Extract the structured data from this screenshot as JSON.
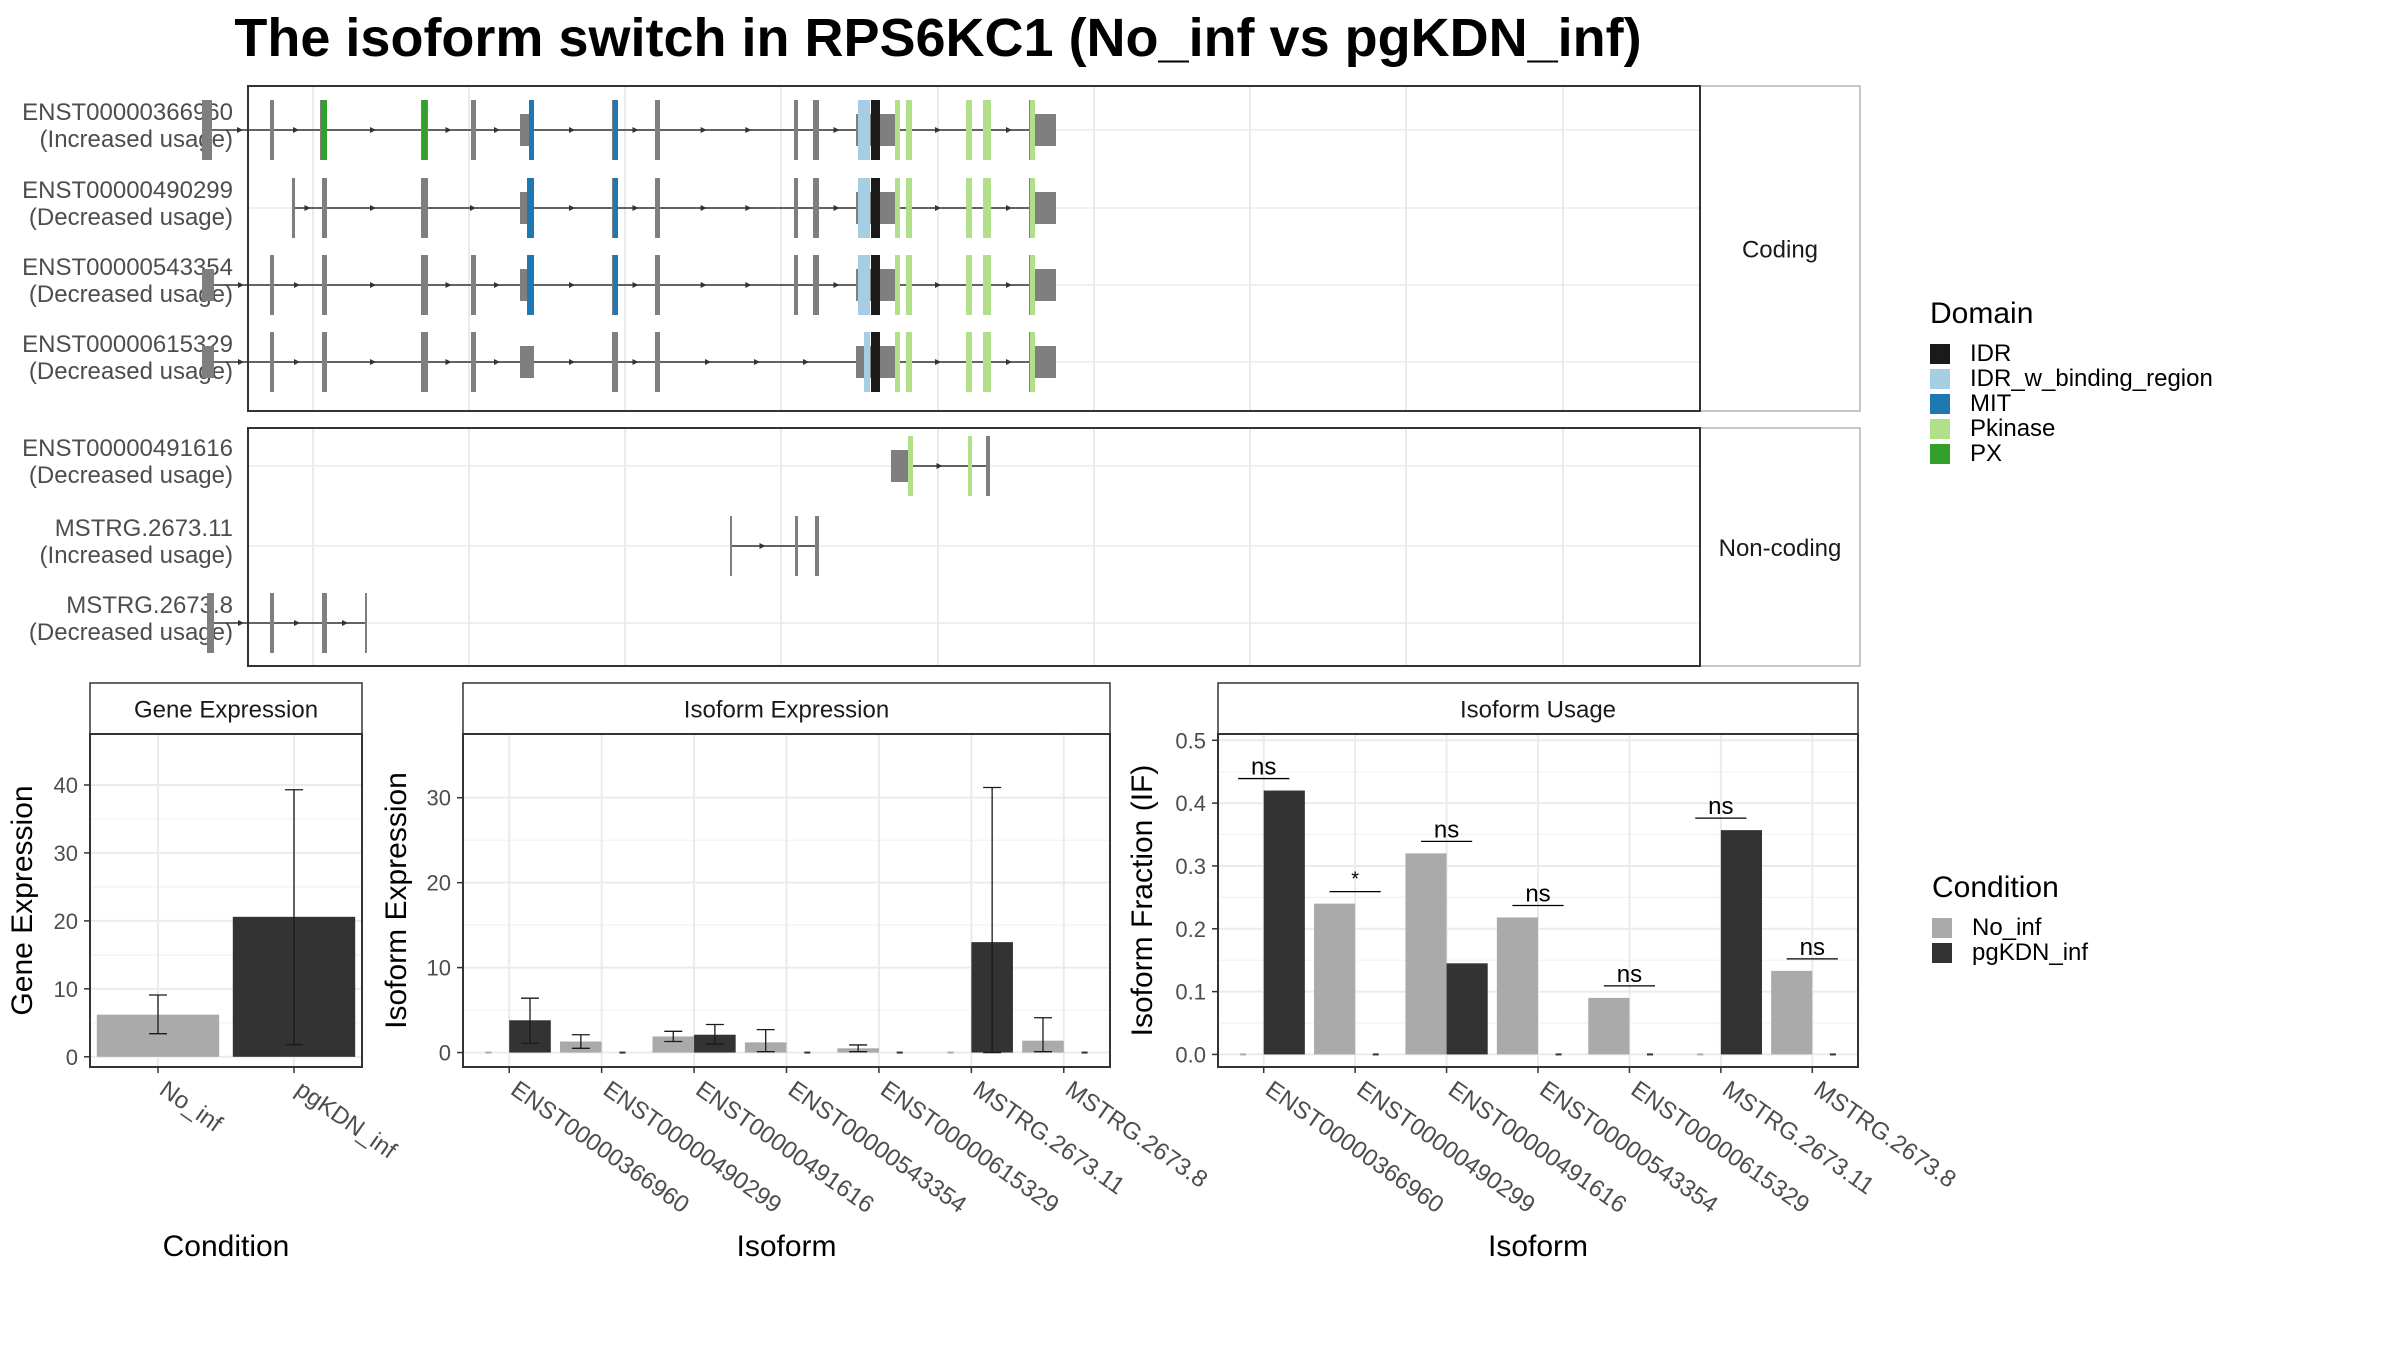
{
  "title": "The isoform switch in RPS6KC1 (No_inf vs pgKDN_inf)",
  "colors": {
    "no_inf": "#aaaaaa",
    "pgkdn_inf": "#333333",
    "exon": "#7f7f7f",
    "IDR": "#1a1a1a",
    "IDR_w_binding_region": "#a6cee3",
    "MIT": "#1f78b4",
    "Pkinase": "#b2df8a",
    "PX": "#33a02c"
  },
  "chart_data": [
    {
      "type": "gene-structure",
      "panels": [
        {
          "strip": "Coding",
          "transcripts": [
            {
              "id": "ENST00000366960",
              "usage": "(Increased usage)",
              "start": 202,
              "end": 1056,
              "exons": [
                [
                  202,
                  212
                ],
                [
                  270,
                  274
                ],
                [
                  320,
                  327
                ],
                [
                  421,
                  428
                ],
                [
                  471,
                  476
                ],
                [
                  520,
                  534
                ],
                [
                  612,
                  618
                ],
                [
                  655,
                  660
                ],
                [
                  794,
                  798
                ],
                [
                  813,
                  819
                ],
                [
                  856,
                  895
                ],
                [
                  895,
                  900
                ],
                [
                  906,
                  912
                ],
                [
                  966,
                  972
                ],
                [
                  983,
                  991
                ],
                [
                  1029,
                  1035
                ],
                [
                  1035,
                  1056
                ]
              ],
              "domains": [
                [
                  321,
                  327,
                  "PX"
                ],
                [
                  422,
                  427,
                  "PX"
                ],
                [
                  529,
                  534,
                  "MIT"
                ],
                [
                  613,
                  618,
                  "MIT"
                ],
                [
                  858,
                  870,
                  "IDR_w_binding_region"
                ],
                [
                  871,
                  880,
                  "IDR"
                ],
                [
                  895,
                  900,
                  "Pkinase"
                ],
                [
                  906,
                  912,
                  "Pkinase"
                ],
                [
                  966,
                  972,
                  "Pkinase"
                ],
                [
                  983,
                  991,
                  "Pkinase"
                ],
                [
                  1030,
                  1035,
                  "Pkinase"
                ]
              ]
            },
            {
              "id": "ENST00000490299",
              "usage": "(Decreased usage)",
              "start": 292,
              "end": 1056,
              "exons": [
                [
                  292,
                  295
                ],
                [
                  322,
                  327
                ],
                [
                  421,
                  428
                ],
                [
                  520,
                  534
                ],
                [
                  612,
                  618
                ],
                [
                  655,
                  660
                ],
                [
                  794,
                  798
                ],
                [
                  813,
                  819
                ],
                [
                  856,
                  895
                ],
                [
                  895,
                  900
                ],
                [
                  906,
                  912
                ],
                [
                  966,
                  972
                ],
                [
                  983,
                  991
                ],
                [
                  1029,
                  1035
                ],
                [
                  1035,
                  1056
                ]
              ],
              "domains": [
                [
                  527,
                  534,
                  "MIT"
                ],
                [
                  613,
                  618,
                  "MIT"
                ],
                [
                  858,
                  870,
                  "IDR_w_binding_region"
                ],
                [
                  871,
                  880,
                  "IDR"
                ],
                [
                  895,
                  900,
                  "Pkinase"
                ],
                [
                  906,
                  912,
                  "Pkinase"
                ],
                [
                  966,
                  972,
                  "Pkinase"
                ],
                [
                  983,
                  991,
                  "Pkinase"
                ],
                [
                  1030,
                  1035,
                  "Pkinase"
                ]
              ]
            },
            {
              "id": "ENST00000543354",
              "usage": "(Decreased usage)",
              "start": 202,
              "end": 1056,
              "exons": [
                [
                  202,
                  214
                ],
                [
                  270,
                  274
                ],
                [
                  322,
                  327
                ],
                [
                  421,
                  428
                ],
                [
                  471,
                  476
                ],
                [
                  520,
                  534
                ],
                [
                  612,
                  618
                ],
                [
                  655,
                  660
                ],
                [
                  794,
                  798
                ],
                [
                  813,
                  819
                ],
                [
                  856,
                  895
                ],
                [
                  895,
                  900
                ],
                [
                  906,
                  912
                ],
                [
                  966,
                  972
                ],
                [
                  983,
                  991
                ],
                [
                  1029,
                  1035
                ],
                [
                  1035,
                  1056
                ]
              ],
              "domains": [
                [
                  527,
                  534,
                  "MIT"
                ],
                [
                  613,
                  618,
                  "MIT"
                ],
                [
                  858,
                  870,
                  "IDR_w_binding_region"
                ],
                [
                  871,
                  880,
                  "IDR"
                ],
                [
                  895,
                  900,
                  "Pkinase"
                ],
                [
                  906,
                  912,
                  "Pkinase"
                ],
                [
                  966,
                  972,
                  "Pkinase"
                ],
                [
                  983,
                  991,
                  "Pkinase"
                ],
                [
                  1030,
                  1035,
                  "Pkinase"
                ]
              ]
            },
            {
              "id": "ENST00000615329",
              "usage": "(Decreased usage)",
              "start": 202,
              "end": 1056,
              "exons": [
                [
                  202,
                  214
                ],
                [
                  270,
                  274
                ],
                [
                  322,
                  327
                ],
                [
                  421,
                  428
                ],
                [
                  471,
                  476
                ],
                [
                  520,
                  534
                ],
                [
                  612,
                  618
                ],
                [
                  655,
                  660
                ],
                [
                  856,
                  895
                ],
                [
                  895,
                  900
                ],
                [
                  906,
                  912
                ],
                [
                  966,
                  972
                ],
                [
                  983,
                  991
                ],
                [
                  1029,
                  1035
                ],
                [
                  1035,
                  1056
                ]
              ],
              "domains": [
                [
                  864,
                  870,
                  "IDR_w_binding_region"
                ],
                [
                  871,
                  880,
                  "IDR"
                ],
                [
                  895,
                  900,
                  "Pkinase"
                ],
                [
                  906,
                  912,
                  "Pkinase"
                ],
                [
                  966,
                  972,
                  "Pkinase"
                ],
                [
                  983,
                  991,
                  "Pkinase"
                ],
                [
                  1030,
                  1035,
                  "Pkinase"
                ]
              ]
            }
          ]
        },
        {
          "strip": "Non-coding",
          "transcripts": [
            {
              "id": "ENST00000491616",
              "usage": "(Decreased usage)",
              "start": 891,
              "end": 990,
              "exons": [
                [
                  891,
                  908
                ],
                [
                  908,
                  913
                ],
                [
                  968,
                  972
                ],
                [
                  986,
                  990
                ]
              ],
              "domains": [
                [
                  908,
                  913,
                  "Pkinase"
                ],
                [
                  968,
                  972,
                  "Pkinase"
                ]
              ]
            },
            {
              "id": "MSTRG.2673.11",
              "usage": "(Increased usage)",
              "start": 730,
              "end": 819,
              "exons": [
                [
                  730,
                  732
                ],
                [
                  795,
                  798
                ],
                [
                  815,
                  819
                ]
              ],
              "domains": []
            },
            {
              "id": "MSTRG.2673.8",
              "usage": "(Decreased usage)",
              "start": 207,
              "end": 367,
              "exons": [
                [
                  207,
                  214
                ],
                [
                  270,
                  274
                ],
                [
                  322,
                  327
                ],
                [
                  365,
                  367
                ]
              ],
              "domains": []
            }
          ]
        }
      ]
    },
    {
      "type": "bar",
      "strip": "Gene Expression",
      "xlabel": "Condition",
      "ylabel": "Gene Expression",
      "categories": [
        "No_inf",
        "pgKDN_inf"
      ],
      "values": [
        6.2,
        20.6
      ],
      "errors": [
        [
          3.4,
          9.1
        ],
        [
          1.8,
          39.3
        ]
      ],
      "ylim": [
        -1.5,
        47.5
      ],
      "yticks": [
        0,
        10,
        20,
        30,
        40
      ]
    },
    {
      "type": "bar",
      "strip": "Isoform Expression",
      "xlabel": "Isoform",
      "ylabel": "Isoform Expression",
      "categories": [
        "ENST00000366960",
        "ENST00000490299",
        "ENST00000491616",
        "ENST00000543354",
        "ENST00000615329",
        "MSTRG.2673.11",
        "MSTRG.2673.8"
      ],
      "series": [
        {
          "name": "No_inf",
          "values": [
            0,
            1.3,
            1.9,
            1.2,
            0.5,
            0,
            1.4
          ],
          "errors": [
            [
              0,
              0
            ],
            [
              0.5,
              2.1
            ],
            [
              1.3,
              2.5
            ],
            [
              0.1,
              2.7
            ],
            [
              0.1,
              0.9
            ],
            [
              0,
              0
            ],
            [
              0.1,
              4.1
            ]
          ]
        },
        {
          "name": "pgKDN_inf",
          "values": [
            3.8,
            0,
            2.1,
            0,
            0,
            13.0,
            0
          ],
          "errors": [
            [
              1.1,
              6.4
            ],
            [
              0,
              0
            ],
            [
              1.0,
              3.3
            ],
            [
              0,
              0
            ],
            [
              0,
              0
            ],
            [
              0,
              31.2
            ],
            [
              0,
              0
            ]
          ]
        }
      ],
      "ylim": [
        -1.7,
        37.5
      ],
      "yticks": [
        0,
        10,
        20,
        30
      ]
    },
    {
      "type": "bar",
      "strip": "Isoform Usage",
      "xlabel": "Isoform",
      "ylabel": "Isoform Fraction (IF)",
      "categories": [
        "ENST00000366960",
        "ENST00000490299",
        "ENST00000491616",
        "ENST00000543354",
        "ENST00000615329",
        "MSTRG.2673.11",
        "MSTRG.2673.8"
      ],
      "series": [
        {
          "name": "No_inf",
          "values": [
            0,
            0.24,
            0.32,
            0.218,
            0.09,
            0,
            0.133
          ]
        },
        {
          "name": "pgKDN_inf",
          "values": [
            0.42,
            0,
            0.145,
            0,
            0,
            0.357,
            0
          ]
        }
      ],
      "significance": [
        "ns",
        "*",
        "ns",
        "ns",
        "ns",
        "ns",
        "ns"
      ],
      "ylim": [
        -0.02,
        0.51
      ],
      "yticks": [
        "0.0",
        "0.1",
        "0.2",
        "0.3",
        "0.4",
        "0.5"
      ]
    }
  ],
  "legend_domain": {
    "title": "Domain",
    "items": [
      {
        "label": "IDR",
        "key": "IDR"
      },
      {
        "label": "IDR_w_binding_region",
        "key": "IDR_w_binding_region"
      },
      {
        "label": "MIT",
        "key": "MIT"
      },
      {
        "label": "Pkinase",
        "key": "Pkinase"
      },
      {
        "label": "PX",
        "key": "PX"
      }
    ]
  },
  "legend_condition": {
    "title": "Condition",
    "items": [
      {
        "label": "No_inf",
        "key": "no_inf"
      },
      {
        "label": "pgKDN_inf",
        "key": "pgkdn_inf"
      }
    ]
  }
}
